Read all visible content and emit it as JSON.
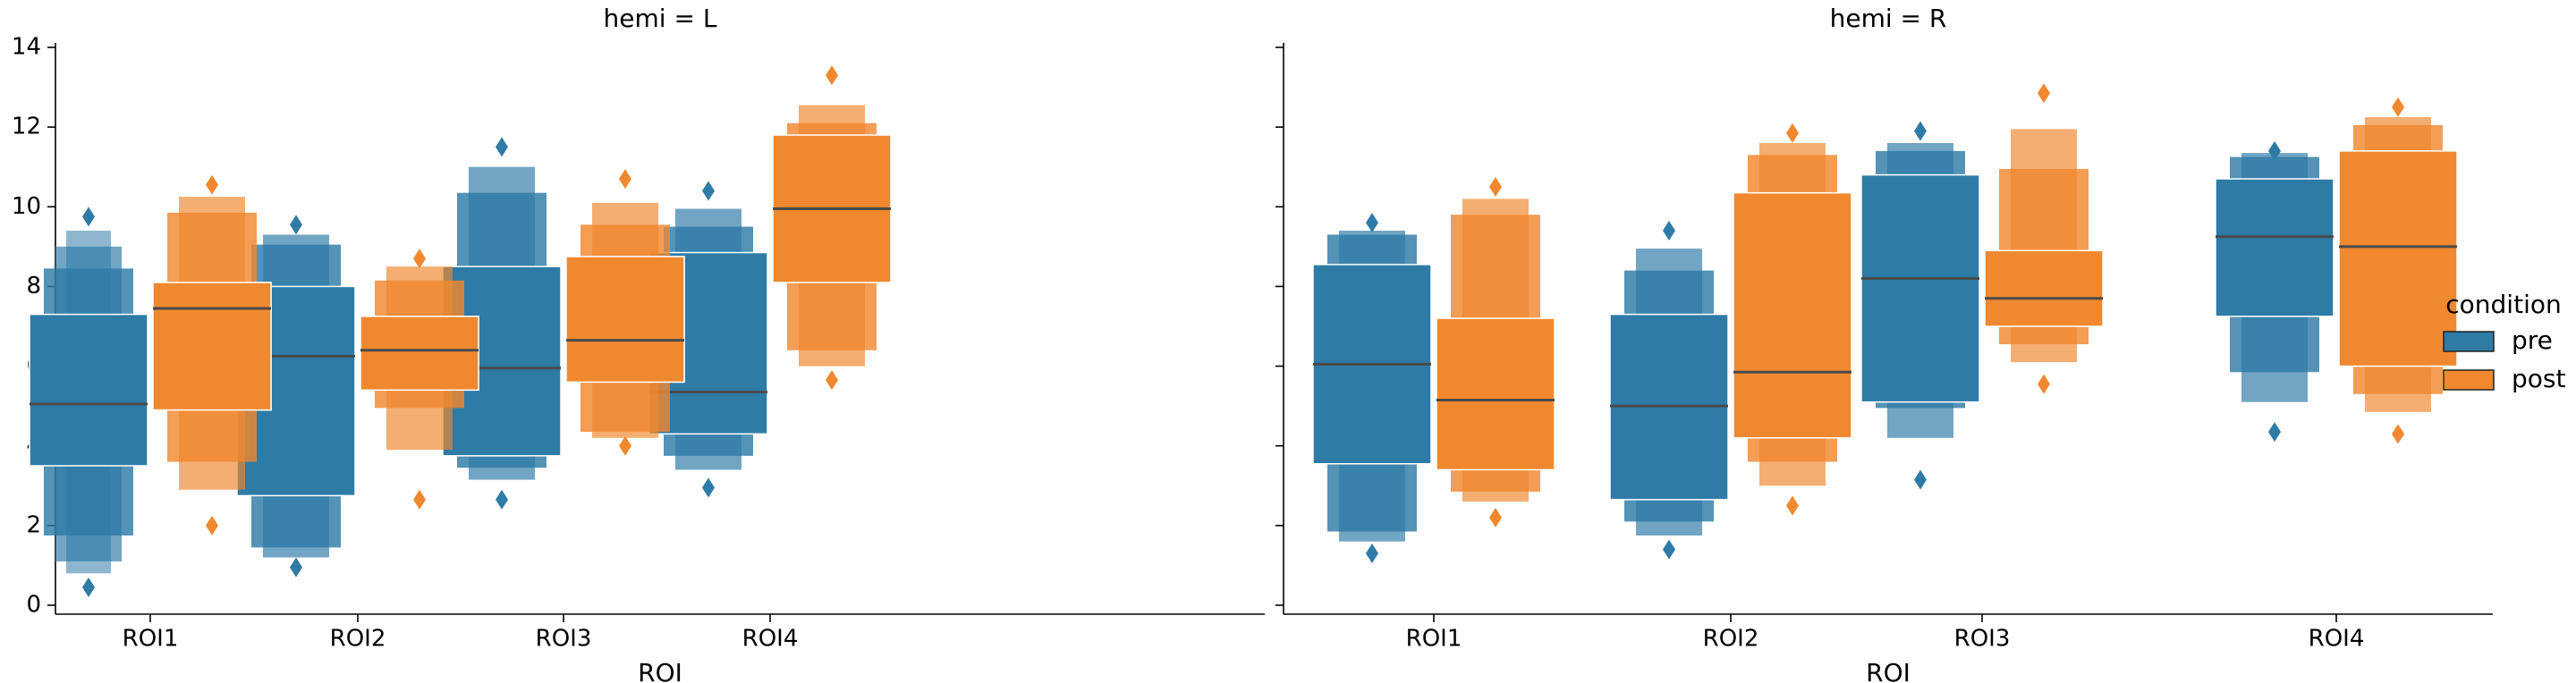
{
  "chart_data": {
    "type": "boxenplot",
    "xlabel": "ROI",
    "ylabel": "",
    "ylim": [
      0,
      14
    ],
    "yticks": [
      0,
      2,
      4,
      6,
      8,
      10,
      12,
      14
    ],
    "categories": [
      "ROI1",
      "ROI2",
      "ROI3",
      "ROI4"
    ],
    "legend": {
      "title": "condition",
      "entries": [
        {
          "name": "pre",
          "color": "#2e7ba6"
        },
        {
          "name": "post",
          "color": "#f0882f"
        }
      ],
      "placement": "right"
    },
    "facets": [
      {
        "title": "hemi = L",
        "series": [
          {
            "name": "pre",
            "color": "#2e7ba6",
            "boxes": [
              {
                "median": 5.05,
                "levels": [
                  [
                    3.5,
                    7.3
                  ],
                  [
                    1.75,
                    8.45
                  ],
                  [
                    1.1,
                    9.0
                  ],
                  [
                    0.8,
                    9.4
                  ]
                ],
                "outliers": [
                  0.45,
                  9.75
                ]
              },
              {
                "median": 6.25,
                "levels": [
                  [
                    2.75,
                    8.0
                  ],
                  [
                    1.45,
                    9.05
                  ],
                  [
                    1.2,
                    9.3
                  ]
                ],
                "outliers": [
                  0.95,
                  9.55
                ]
              },
              {
                "median": 5.95,
                "levels": [
                  [
                    3.75,
                    8.5
                  ],
                  [
                    3.45,
                    10.35
                  ],
                  [
                    3.15,
                    11.0
                  ]
                ],
                "outliers": [
                  2.65,
                  11.5
                ]
              },
              {
                "median": 5.35,
                "levels": [
                  [
                    4.3,
                    8.85
                  ],
                  [
                    3.75,
                    9.5
                  ],
                  [
                    3.4,
                    9.95
                  ]
                ],
                "outliers": [
                  2.95,
                  10.4
                ]
              }
            ]
          },
          {
            "name": "post",
            "color": "#f0882f",
            "boxes": [
              {
                "median": 7.45,
                "levels": [
                  [
                    4.9,
                    8.1
                  ],
                  [
                    3.6,
                    9.85
                  ],
                  [
                    2.9,
                    10.25
                  ]
                ],
                "outliers": [
                  2.0,
                  10.55
                ]
              },
              {
                "median": 6.4,
                "levels": [
                  [
                    5.4,
                    7.25
                  ],
                  [
                    4.95,
                    8.15
                  ],
                  [
                    3.9,
                    8.5
                  ]
                ],
                "outliers": [
                  2.65,
                  8.7
                ]
              },
              {
                "median": 6.65,
                "levels": [
                  [
                    5.6,
                    8.75
                  ],
                  [
                    4.35,
                    9.55
                  ],
                  [
                    4.2,
                    10.1
                  ]
                ],
                "outliers": [
                  4.0,
                  10.7
                ]
              },
              {
                "median": 9.95,
                "levels": [
                  [
                    8.1,
                    11.8
                  ],
                  [
                    6.4,
                    12.1
                  ],
                  [
                    6.0,
                    12.55
                  ]
                ],
                "outliers": [
                  5.65,
                  13.3
                ]
              }
            ]
          }
        ]
      },
      {
        "title": "hemi = R",
        "series": [
          {
            "name": "pre",
            "color": "#2e7ba6",
            "boxes": [
              {
                "median": 6.05,
                "levels": [
                  [
                    3.55,
                    8.55
                  ],
                  [
                    1.85,
                    9.3
                  ],
                  [
                    1.6,
                    9.4
                  ]
                ],
                "outliers": [
                  1.3,
                  9.6
                ]
              },
              {
                "median": 5.0,
                "levels": [
                  [
                    2.65,
                    7.3
                  ],
                  [
                    2.1,
                    8.4
                  ],
                  [
                    1.75,
                    8.95
                  ]
                ],
                "outliers": [
                  1.4,
                  9.4
                ]
              },
              {
                "median": 8.2,
                "levels": [
                  [
                    5.1,
                    10.8
                  ],
                  [
                    4.95,
                    11.4
                  ],
                  [
                    4.2,
                    11.6
                  ]
                ],
                "outliers": [
                  3.15,
                  11.9
                ]
              },
              {
                "median": 9.25,
                "levels": [
                  [
                    7.25,
                    10.7
                  ],
                  [
                    5.85,
                    11.25
                  ],
                  [
                    5.1,
                    11.35
                  ]
                ],
                "outliers": [
                  4.35,
                  11.4
                ]
              }
            ]
          },
          {
            "name": "post",
            "color": "#f0882f",
            "boxes": [
              {
                "median": 5.15,
                "levels": [
                  [
                    3.4,
                    7.2
                  ],
                  [
                    2.85,
                    9.8
                  ],
                  [
                    2.6,
                    10.2
                  ]
                ],
                "outliers": [
                  2.2,
                  10.5
                ]
              },
              {
                "median": 5.85,
                "levels": [
                  [
                    4.2,
                    10.35
                  ],
                  [
                    3.6,
                    11.3
                  ],
                  [
                    3.0,
                    11.6
                  ]
                ],
                "outliers": [
                  2.5,
                  11.85
                ]
              },
              {
                "median": 7.7,
                "levels": [
                  [
                    7.0,
                    8.9
                  ],
                  [
                    6.55,
                    10.95
                  ],
                  [
                    6.1,
                    11.95
                  ]
                ],
                "outliers": [
                  5.55,
                  12.85
                ]
              },
              {
                "median": 9.0,
                "levels": [
                  [
                    6.0,
                    11.4
                  ],
                  [
                    5.3,
                    12.05
                  ],
                  [
                    4.85,
                    12.25
                  ]
                ],
                "outliers": [
                  4.3,
                  12.5
                ]
              }
            ]
          }
        ]
      }
    ]
  }
}
